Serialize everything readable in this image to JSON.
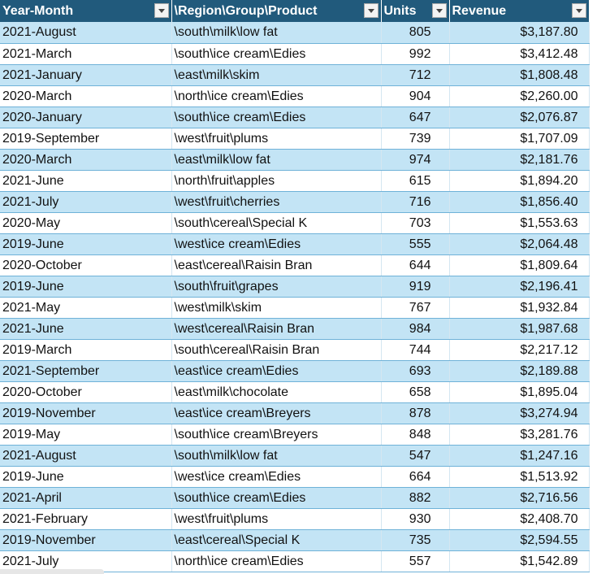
{
  "header": {
    "col1": "Year-Month",
    "col2": "\\Region\\Group\\Product",
    "col3": "Units",
    "col4": "Revenue"
  },
  "rows": [
    [
      "2021-August",
      "\\south\\milk\\low fat",
      "805",
      "$3,187.80"
    ],
    [
      "2021-March",
      "\\south\\ice cream\\Edies",
      "992",
      "$3,412.48"
    ],
    [
      "2021-January",
      "\\east\\milk\\skim",
      "712",
      "$1,808.48"
    ],
    [
      "2020-March",
      "\\north\\ice cream\\Edies",
      "904",
      "$2,260.00"
    ],
    [
      "2020-January",
      "\\south\\ice cream\\Edies",
      "647",
      "$2,076.87"
    ],
    [
      "2019-September",
      "\\west\\fruit\\plums",
      "739",
      "$1,707.09"
    ],
    [
      "2020-March",
      "\\east\\milk\\low fat",
      "974",
      "$2,181.76"
    ],
    [
      "2021-June",
      "\\north\\fruit\\apples",
      "615",
      "$1,894.20"
    ],
    [
      "2021-July",
      "\\west\\fruit\\cherries",
      "716",
      "$1,856.40"
    ],
    [
      "2020-May",
      "\\south\\cereal\\Special K",
      "703",
      "$1,553.63"
    ],
    [
      "2019-June",
      "\\west\\ice cream\\Edies",
      "555",
      "$2,064.48"
    ],
    [
      "2020-October",
      "\\east\\cereal\\Raisin Bran",
      "644",
      "$1,809.64"
    ],
    [
      "2019-June",
      "\\south\\fruit\\grapes",
      "919",
      "$2,196.41"
    ],
    [
      "2021-May",
      "\\west\\milk\\skim",
      "767",
      "$1,932.84"
    ],
    [
      "2021-June",
      "\\west\\cereal\\Raisin Bran",
      "984",
      "$1,987.68"
    ],
    [
      "2019-March",
      "\\south\\cereal\\Raisin Bran",
      "744",
      "$2,217.12"
    ],
    [
      "2021-September",
      "\\east\\ice cream\\Edies",
      "693",
      "$2,189.88"
    ],
    [
      "2020-October",
      "\\east\\milk\\chocolate",
      "658",
      "$1,895.04"
    ],
    [
      "2019-November",
      "\\east\\ice cream\\Breyers",
      "878",
      "$3,274.94"
    ],
    [
      "2019-May",
      "\\south\\ice cream\\Breyers",
      "848",
      "$3,281.76"
    ],
    [
      "2021-August",
      "\\south\\milk\\low fat",
      "547",
      "$1,247.16"
    ],
    [
      "2019-June",
      "\\west\\ice cream\\Edies",
      "664",
      "$1,513.92"
    ],
    [
      "2021-April",
      "\\south\\ice cream\\Edies",
      "882",
      "$2,716.56"
    ],
    [
      "2021-February",
      "\\west\\fruit\\plums",
      "930",
      "$2,408.70"
    ],
    [
      "2019-November",
      "\\east\\cereal\\Special K",
      "735",
      "$2,594.55"
    ],
    [
      "2021-July",
      "\\north\\ice cream\\Edies",
      "557",
      "$1,542.89"
    ]
  ]
}
